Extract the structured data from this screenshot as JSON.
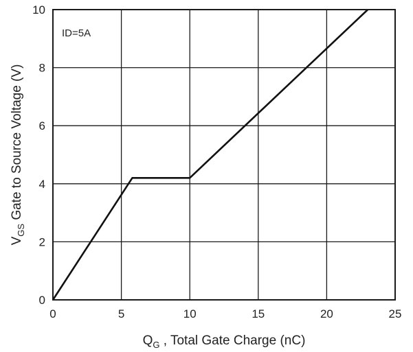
{
  "chart_data": {
    "type": "line",
    "title": "",
    "xlabel": {
      "symbol": "Q",
      "sub": "G",
      "text": " , Total Gate Charge (nC)"
    },
    "ylabel": {
      "symbol": "V",
      "sub": "GS",
      "text": "  Gate to Source Voltage (V)"
    },
    "xlim": [
      0,
      25
    ],
    "ylim": [
      0,
      10
    ],
    "xticks": [
      0,
      5,
      10,
      15,
      20,
      25
    ],
    "yticks": [
      0,
      2,
      4,
      6,
      8,
      10
    ],
    "grid": true,
    "annotation": "ID=5A",
    "series": [
      {
        "x": [
          0,
          5.8,
          10.0,
          23.0
        ],
        "y": [
          0,
          4.2,
          4.2,
          10.0
        ]
      }
    ]
  },
  "colors": {
    "line": "#111111",
    "grid": "#1a1a1a",
    "text": "#222222"
  }
}
